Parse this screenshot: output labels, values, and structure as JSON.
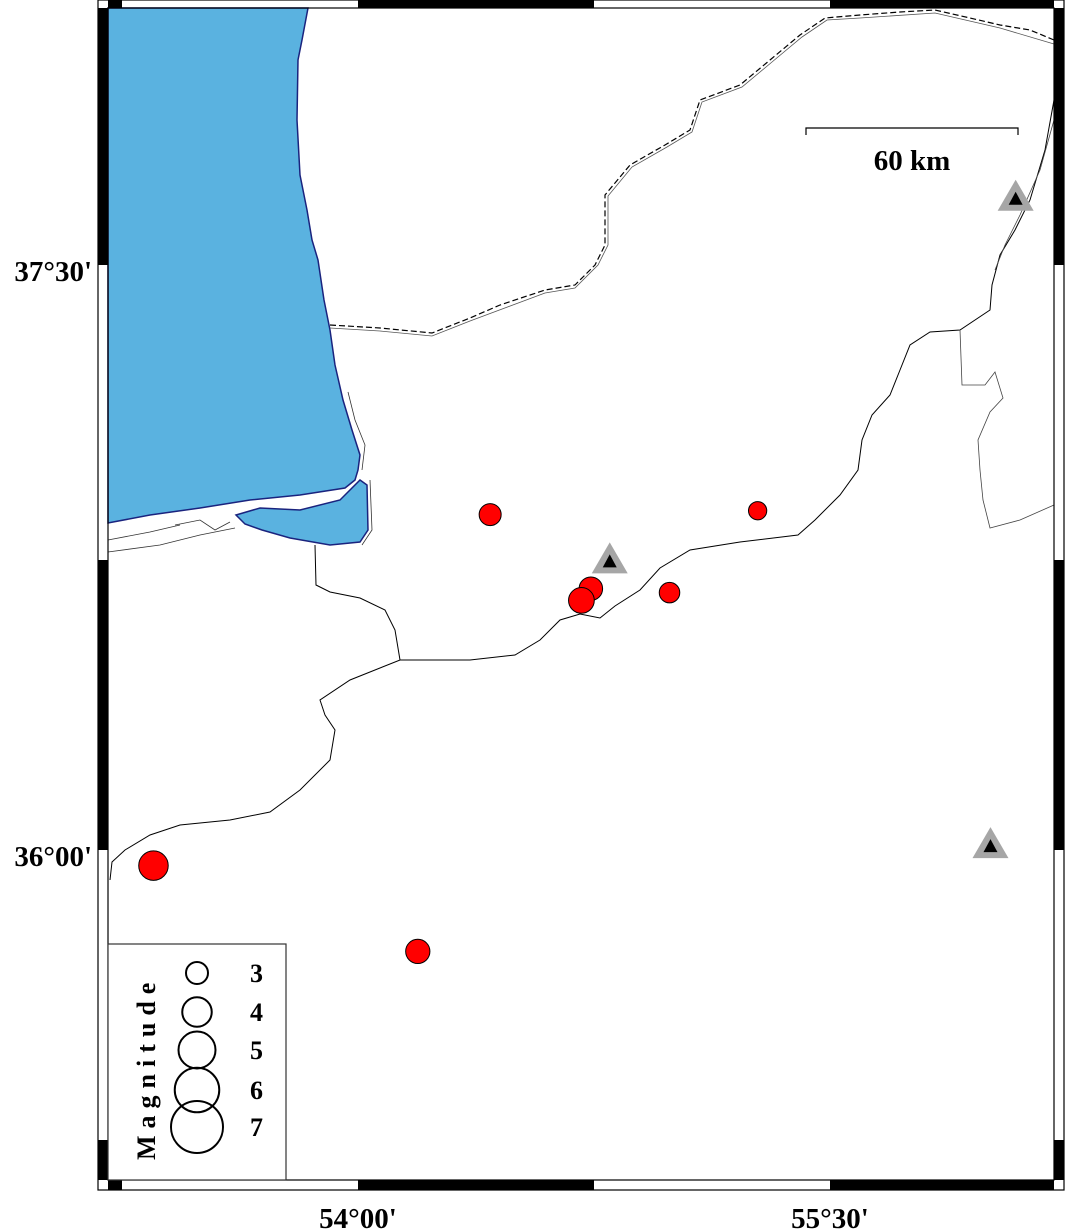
{
  "map": {
    "projection": "mercator",
    "lon_ticks": [
      {
        "value": 54.0,
        "label": "54°00'"
      },
      {
        "value": 55.5,
        "label": "55°30'"
      }
    ],
    "lat_ticks": [
      {
        "value": 37.5,
        "label": "37°30'"
      },
      {
        "value": 36.0,
        "label": "36°00'"
      }
    ],
    "scale_bar": {
      "label": "60 km"
    },
    "colors": {
      "sea": "#5ab2e0",
      "coastline": "#1a237e",
      "event": "#ff0000",
      "station_outer": "#a6a6a6",
      "station_inner": "#000000"
    },
    "events": [
      {
        "lon": 54.42,
        "lat": 36.86,
        "mag": 3.0
      },
      {
        "lon": 55.27,
        "lat": 36.87,
        "mag": 2.5
      },
      {
        "lon": 54.74,
        "lat": 36.67,
        "mag": 3.2
      },
      {
        "lon": 54.71,
        "lat": 36.64,
        "mag": 3.5
      },
      {
        "lon": 54.99,
        "lat": 36.66,
        "mag": 2.8
      },
      {
        "lon": 53.35,
        "lat": 35.96,
        "mag": 4.0
      },
      {
        "lon": 54.19,
        "lat": 35.74,
        "mag": 3.3
      }
    ],
    "stations": [
      {
        "lon": 56.09,
        "lat": 37.67
      },
      {
        "lon": 54.8,
        "lat": 36.74
      },
      {
        "lon": 56.01,
        "lat": 36.01
      }
    ]
  },
  "legend": {
    "title": "Magnitude",
    "entries": [
      {
        "label": "3",
        "mag": 3
      },
      {
        "label": "4",
        "mag": 4
      },
      {
        "label": "5",
        "mag": 5
      },
      {
        "label": "6",
        "mag": 6
      },
      {
        "label": "7",
        "mag": 7
      }
    ]
  }
}
